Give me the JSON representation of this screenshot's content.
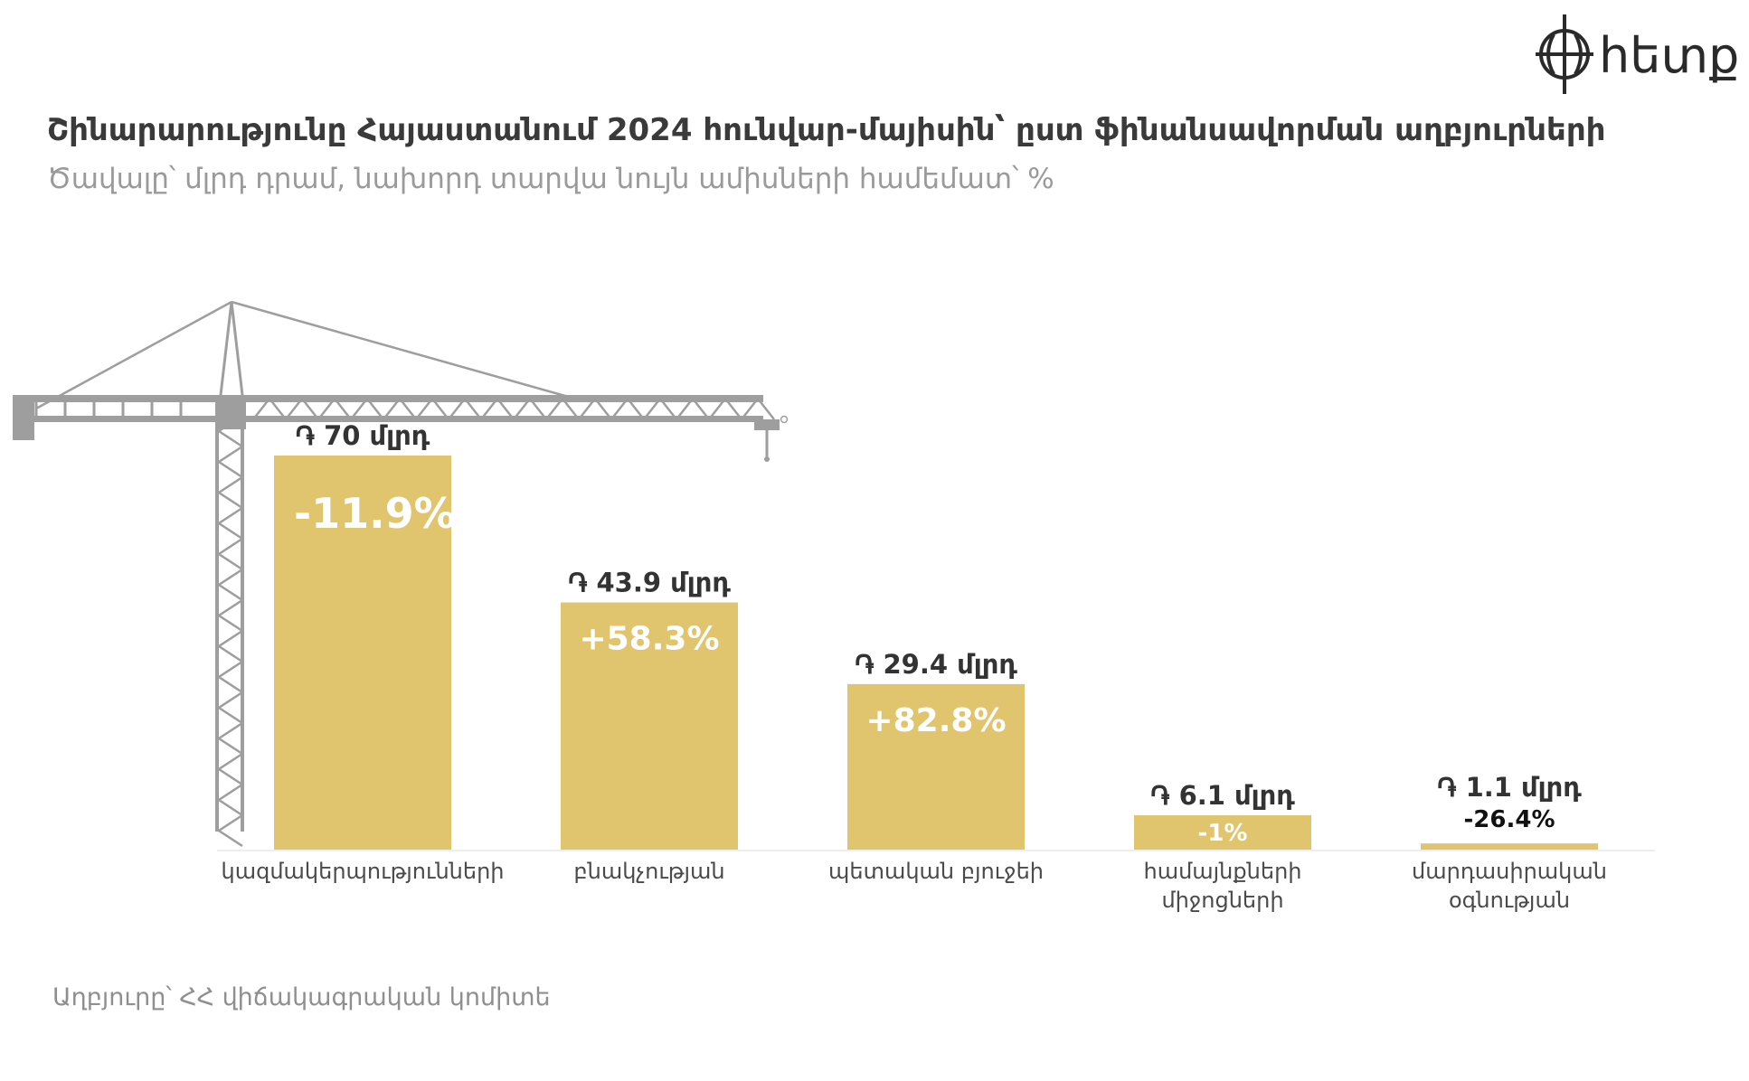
{
  "header": {
    "title": "Շինարարությունը Հայաստանում 2024 հունվար-մայիսին՝ ըստ ֆինանսավորման աղբյուրների",
    "subtitle": "Ծավալը՝ մլրդ դրամ, նախորդ տարվա նույն ամիսների համեմատ՝ %"
  },
  "footer": {
    "source": "Աղբյուրը՝ ՀՀ վիճակագրական կոմիտե"
  },
  "logo": {
    "text": "hետք",
    "icon": "globe-crosshair-logo-icon"
  },
  "colors": {
    "bar": "#e1c46e",
    "pct_inside": "#ffffff",
    "pct_outside": "#111111",
    "crane": "#9e9e9e"
  },
  "chart_data": {
    "type": "bar",
    "title": "Շինարարությունը Հայաստանում 2024 հունվար-մայիսին՝ ըստ ֆինանսավորման աղբյուրների",
    "subtitle": "Ծավալը՝ մլրդ դրամ, նախորդ տարվա նույն ամիսների համեմատ՝ %",
    "categories": [
      [
        "կազմակերպությունների"
      ],
      [
        "բնակչության"
      ],
      [
        "պետական բյուջեի"
      ],
      [
        "համայնքների",
        "միջոցների"
      ],
      [
        "մարդասիրական",
        "օգնության"
      ]
    ],
    "values": [
      70,
      43.9,
      29.4,
      6.1,
      1.1
    ],
    "value_labels": [
      "֏ 70 մլրդ",
      "֏ 43.9 մլրդ",
      "֏ 29.4 մլրդ",
      "֏ 6.1 մլրդ",
      "֏ 1.1 մլրդ"
    ],
    "change_labels": [
      "-11.9%",
      "+58.3%",
      "+82.8%",
      "-1%",
      "-26.4%"
    ],
    "change_values": [
      -11.9,
      58.3,
      82.8,
      -1,
      -26.4
    ],
    "xlabel": "",
    "ylabel": "",
    "ylim": [
      0,
      70
    ],
    "grid": false,
    "legend": "none"
  }
}
